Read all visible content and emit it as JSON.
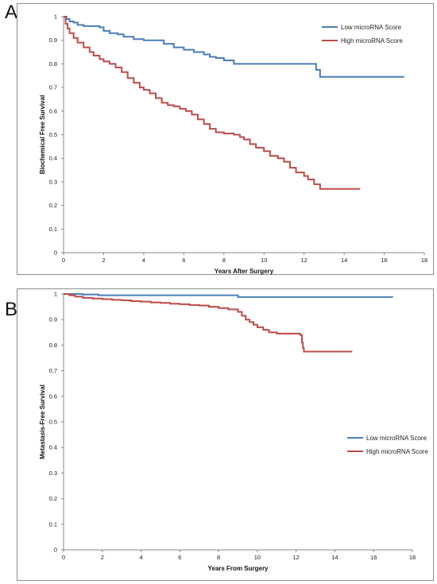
{
  "panels": [
    {
      "letter": "A"
    },
    {
      "letter": "B"
    }
  ],
  "chart_data": [
    {
      "type": "line",
      "title": "",
      "xlabel": "Years After Surgery",
      "ylabel": "Biochemical Free Survival",
      "xlim": [
        0,
        18
      ],
      "ylim": [
        0,
        1
      ],
      "x_ticks": [
        "0",
        "2",
        "4",
        "6",
        "8",
        "10",
        "12",
        "14",
        "16",
        "18"
      ],
      "y_ticks": [
        "0",
        "0.1",
        "0.2",
        "0.3",
        "0.4",
        "0.5",
        "0.6",
        "0.7",
        "0.8",
        "0.9",
        "1"
      ],
      "grid": false,
      "legend_position": "top-right",
      "step": true,
      "series": [
        {
          "name": "Low microRNA Score",
          "color": "#4a7ebb",
          "x": [
            0,
            0.15,
            0.3,
            0.5,
            0.7,
            1.0,
            1.3,
            1.6,
            1.8,
            2.0,
            2.3,
            2.7,
            3.0,
            3.5,
            4.0,
            4.5,
            5.0,
            5.5,
            6.0,
            6.5,
            7.0,
            7.3,
            7.6,
            8.0,
            8.5,
            9.0,
            10.0,
            11.0,
            12.0,
            12.2,
            12.6,
            12.8,
            14.0,
            15.0,
            16.0,
            17.0
          ],
          "y": [
            1,
            0.99,
            0.98,
            0.975,
            0.965,
            0.96,
            0.96,
            0.96,
            0.955,
            0.94,
            0.93,
            0.925,
            0.915,
            0.905,
            0.9,
            0.9,
            0.885,
            0.87,
            0.86,
            0.85,
            0.84,
            0.83,
            0.825,
            0.815,
            0.8,
            0.8,
            0.8,
            0.8,
            0.8,
            0.8,
            0.775,
            0.745,
            0.745,
            0.745,
            0.745,
            0.745
          ]
        },
        {
          "name": "High microRNA Score",
          "color": "#be4b48",
          "x": [
            0,
            0.1,
            0.2,
            0.3,
            0.5,
            0.7,
            1.0,
            1.3,
            1.5,
            1.8,
            2.0,
            2.3,
            2.6,
            2.9,
            3.2,
            3.5,
            3.8,
            4.0,
            4.3,
            4.6,
            4.9,
            5.2,
            5.5,
            5.8,
            6.1,
            6.4,
            6.7,
            7.0,
            7.3,
            7.6,
            8.0,
            8.5,
            8.8,
            9.0,
            9.3,
            9.6,
            10.0,
            10.3,
            10.7,
            11.0,
            11.3,
            11.6,
            12.0,
            12.2,
            12.5,
            12.8,
            13.2,
            14.0,
            14.8
          ],
          "y": [
            1,
            0.97,
            0.95,
            0.93,
            0.91,
            0.89,
            0.87,
            0.85,
            0.835,
            0.82,
            0.81,
            0.8,
            0.785,
            0.765,
            0.74,
            0.72,
            0.7,
            0.69,
            0.675,
            0.655,
            0.635,
            0.625,
            0.62,
            0.61,
            0.6,
            0.585,
            0.565,
            0.545,
            0.525,
            0.51,
            0.505,
            0.5,
            0.49,
            0.48,
            0.46,
            0.445,
            0.43,
            0.41,
            0.4,
            0.385,
            0.36,
            0.34,
            0.325,
            0.31,
            0.29,
            0.27,
            0.27,
            0.27,
            0.27
          ]
        }
      ]
    },
    {
      "type": "line",
      "title": "",
      "xlabel": "Years From Surgery",
      "ylabel": "Metastasis-Free Survival",
      "xlim": [
        0,
        18
      ],
      "ylim": [
        0,
        1
      ],
      "x_ticks": [
        "0",
        "2",
        "4",
        "6",
        "8",
        "10",
        "12",
        "14",
        "16",
        "18"
      ],
      "y_ticks": [
        "0",
        "0.1",
        "0.2",
        "0.3",
        "0.4",
        "0.5",
        "0.6",
        "0.7",
        "0.8",
        "0.9",
        "1"
      ],
      "grid": false,
      "legend_position": "right",
      "step": true,
      "series": [
        {
          "name": "Low microRNA Score",
          "color": "#4a7ebb",
          "x": [
            0,
            0.5,
            1.0,
            1.8,
            3.0,
            5.0,
            7.0,
            8.9,
            9.0,
            11.0,
            13.0,
            15.0,
            17.0
          ],
          "y": [
            1,
            1,
            0.998,
            0.995,
            0.995,
            0.995,
            0.995,
            0.995,
            0.988,
            0.988,
            0.988,
            0.988,
            0.988
          ]
        },
        {
          "name": "High microRNA Score",
          "color": "#be4b48",
          "x": [
            0,
            0.3,
            0.6,
            1.0,
            1.5,
            2.0,
            2.5,
            3.0,
            3.5,
            4.0,
            4.5,
            5.0,
            5.5,
            6.0,
            6.5,
            7.0,
            7.5,
            8.0,
            8.5,
            9.0,
            9.2,
            9.4,
            9.6,
            9.8,
            10.0,
            10.3,
            10.6,
            11.0,
            11.5,
            12.0,
            12.2,
            12.3,
            12.35,
            12.4,
            13.0,
            14.0,
            14.9
          ],
          "y": [
            1,
            0.995,
            0.99,
            0.985,
            0.982,
            0.98,
            0.977,
            0.975,
            0.972,
            0.97,
            0.967,
            0.965,
            0.962,
            0.96,
            0.957,
            0.955,
            0.95,
            0.945,
            0.94,
            0.93,
            0.915,
            0.9,
            0.89,
            0.88,
            0.87,
            0.86,
            0.85,
            0.845,
            0.845,
            0.845,
            0.84,
            0.81,
            0.79,
            0.775,
            0.775,
            0.775,
            0.775
          ]
        }
      ]
    }
  ]
}
